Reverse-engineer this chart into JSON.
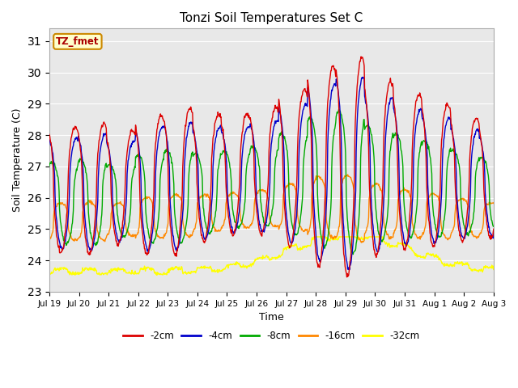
{
  "title": "Tonzi Soil Temperatures Set C",
  "xlabel": "Time",
  "ylabel": "Soil Temperature (C)",
  "ylim": [
    23.0,
    31.4
  ],
  "yticks": [
    23.0,
    24.0,
    25.0,
    26.0,
    27.0,
    28.0,
    29.0,
    30.0,
    31.0
  ],
  "annotation_label": "TZ_fmet",
  "annotation_color": "#aa0000",
  "annotation_bg": "#ffffcc",
  "annotation_border": "#cc8800",
  "bg_color": "#e8e8e8",
  "fig_bg": "#ffffff",
  "line_colors": {
    "-2cm": "#dd0000",
    "-4cm": "#0000cc",
    "-8cm": "#00aa00",
    "-16cm": "#ff8800",
    "-32cm": "#ffff00"
  },
  "xtick_labels": [
    "Jul 19",
    "Jul 20",
    "Jul 21",
    "Jul 22",
    "Jul 23",
    "Jul 24",
    "Jul 25",
    "Jul 26",
    "Jul 27",
    "Jul 28",
    "Jul 29",
    "Jul 30",
    "Jul 31",
    "Aug 1",
    "Aug 2",
    "Aug 3"
  ],
  "total_days": 15.5,
  "n_points": 1000
}
